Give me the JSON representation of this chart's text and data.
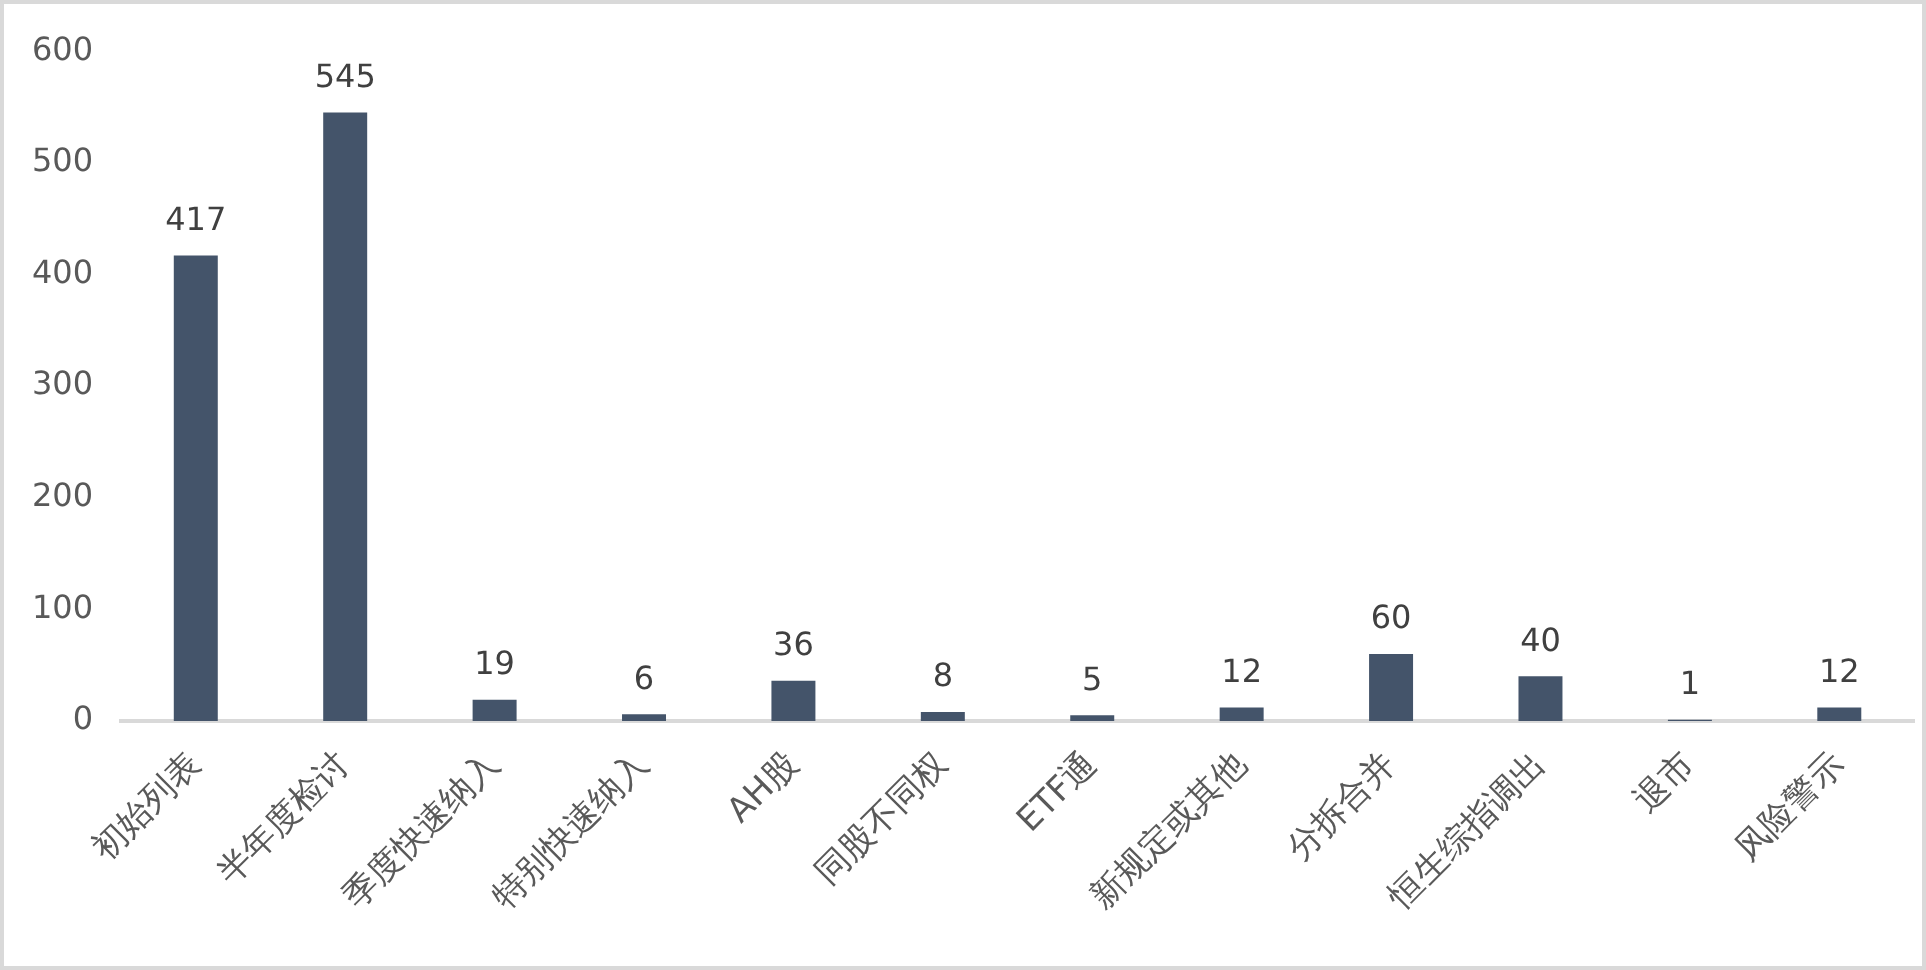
{
  "chart_data": {
    "type": "bar",
    "categories": [
      "初始列表",
      "半年度检讨",
      "季度快速纳入",
      "特别快速纳入",
      "AH股",
      "同股不同权",
      "ETF通",
      "新规定或其他",
      "分拆合并",
      "恒生综指调出",
      "退市",
      "风险警示"
    ],
    "values": [
      417,
      545,
      19,
      6,
      36,
      8,
      5,
      12,
      60,
      40,
      1,
      12
    ],
    "color": "#44546a",
    "ylim": [
      0,
      600
    ],
    "yticks": [
      0,
      100,
      200,
      300,
      400,
      500,
      600
    ],
    "grid": false,
    "legend": false,
    "data_labels": true
  }
}
